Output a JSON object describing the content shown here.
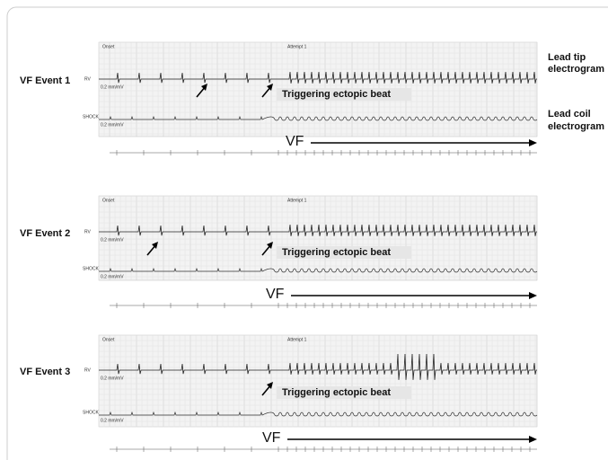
{
  "panels": [
    {
      "label": "VF Event 1",
      "onset": "Onset",
      "attempt": "Attempt 1",
      "lead1": "RV",
      "lead2": "SHOCK",
      "scale1": "0.2 mm/mV",
      "scale2": "0.2 mm/mV",
      "annotation": "Triggering ectopic beat",
      "rhythm": "VF"
    },
    {
      "label": "VF Event 2",
      "onset": "Onset",
      "attempt": "Attempt 1",
      "lead1": "RV",
      "lead2": "SHOCK",
      "scale1": "0.2 mm/mV",
      "scale2": "0.2 mm/mV",
      "annotation": "Triggering ectopic beat",
      "rhythm": "VF"
    },
    {
      "label": "VF Event 3",
      "onset": "Onset",
      "attempt": "Attempt 1",
      "lead1": "RV",
      "lead2": "SHOCK",
      "scale1": "0.2 mm/mV",
      "scale2": "0.2 mm/mV",
      "annotation": "Triggering ectopic beat",
      "rhythm": "VF"
    }
  ],
  "side_labels": {
    "lead_tip": [
      "Lead tip",
      "electrogram"
    ],
    "lead_coil": [
      "Lead coil",
      "electrogram"
    ]
  }
}
